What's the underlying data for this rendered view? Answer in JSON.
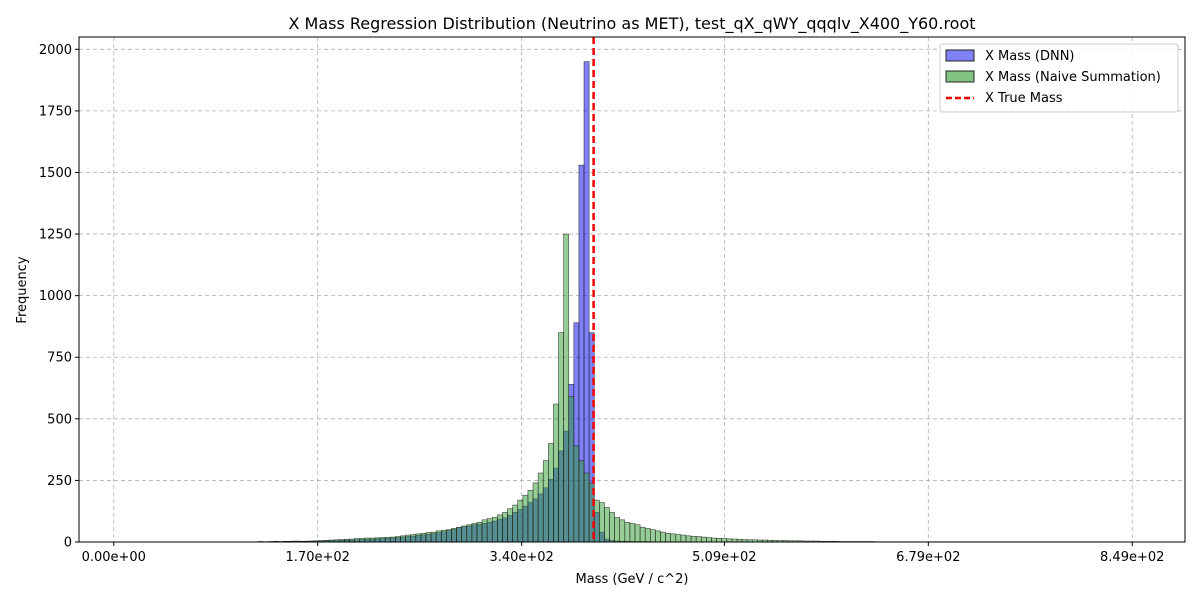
{
  "chart_data": {
    "type": "bar",
    "title": "X Mass Regression Distribution (Neutrino as MET), test_qX_qWY_qqqlv_X400_Y60.root",
    "xlabel": "Mass (GeV / c^2)",
    "ylabel": "Frequency",
    "xlim": [
      -29,
      893
    ],
    "ylim": [
      0,
      2050
    ],
    "grid": true,
    "legend_position": "top-right",
    "bin_start": 120,
    "bin_width": 4.25,
    "x_ticks": [
      0,
      170,
      340,
      509,
      679,
      849
    ],
    "x_tick_labels": [
      "0.00e+00",
      "1.70e+02",
      "3.40e+02",
      "5.09e+02",
      "6.79e+02",
      "8.49e+02"
    ],
    "y_ticks": [
      0,
      250,
      500,
      750,
      1000,
      1250,
      1500,
      1750,
      2000
    ],
    "y_tick_labels": [
      "0",
      "250",
      "500",
      "750",
      "1000",
      "1250",
      "1500",
      "1750",
      "2000"
    ],
    "true_mass": 400,
    "series": [
      {
        "name": "X Mass (DNN)",
        "color": "#0000ee",
        "values": [
          1,
          1,
          1,
          1,
          1,
          2,
          2,
          2,
          3,
          3,
          3,
          4,
          4,
          5,
          5,
          6,
          7,
          8,
          8,
          9,
          10,
          11,
          12,
          13,
          14,
          15,
          16,
          18,
          20,
          22,
          24,
          27,
          29,
          32,
          34,
          38,
          42,
          47,
          52,
          58,
          62,
          65,
          70,
          72,
          76,
          80,
          85,
          92,
          98,
          108,
          120,
          132,
          145,
          160,
          175,
          195,
          220,
          255,
          300,
          370,
          450,
          640,
          890,
          1530,
          1950,
          850,
          120,
          40,
          12,
          6,
          4,
          3,
          3,
          2,
          2,
          2,
          2,
          1,
          1,
          1,
          1,
          1,
          1,
          1,
          1,
          1
        ]
      },
      {
        "name": "X Mass (Naive Summation)",
        "color": "#2e9b2e",
        "values": [
          2,
          1,
          2,
          3,
          2,
          3,
          3,
          4,
          3,
          3,
          4,
          5,
          6,
          7,
          8,
          9,
          10,
          11,
          12,
          14,
          15,
          16,
          16,
          17,
          18,
          19,
          20,
          22,
          25,
          28,
          30,
          33,
          35,
          38,
          40,
          45,
          48,
          50,
          55,
          60,
          65,
          70,
          75,
          80,
          90,
          95,
          100,
          110,
          120,
          135,
          150,
          170,
          190,
          210,
          240,
          280,
          330,
          400,
          560,
          850,
          1250,
          590,
          390,
          330,
          280,
          240,
          170,
          160,
          140,
          120,
          100,
          90,
          80,
          75,
          70,
          60,
          55,
          50,
          45,
          40,
          35,
          33,
          30,
          28,
          25,
          23,
          22,
          20,
          18,
          16,
          15,
          14,
          13,
          12,
          11,
          10,
          9,
          9,
          8,
          8,
          7,
          7,
          6,
          6,
          5,
          5,
          5,
          4,
          4,
          4,
          3,
          3,
          3,
          3,
          2,
          2,
          2,
          2,
          2,
          2,
          2,
          1,
          1,
          1,
          1,
          1,
          1,
          1,
          1,
          1,
          1,
          1,
          1,
          1,
          1,
          1,
          1,
          1,
          1,
          1,
          1,
          1,
          1,
          1,
          1,
          1,
          1,
          1,
          1,
          1,
          1,
          1,
          1,
          1,
          1,
          1,
          1,
          1,
          1,
          1,
          1,
          1,
          1,
          1,
          1,
          1,
          1,
          1,
          1,
          1
        ]
      }
    ],
    "line_series": {
      "name": "X True Mass",
      "color": "#ee0000"
    }
  }
}
